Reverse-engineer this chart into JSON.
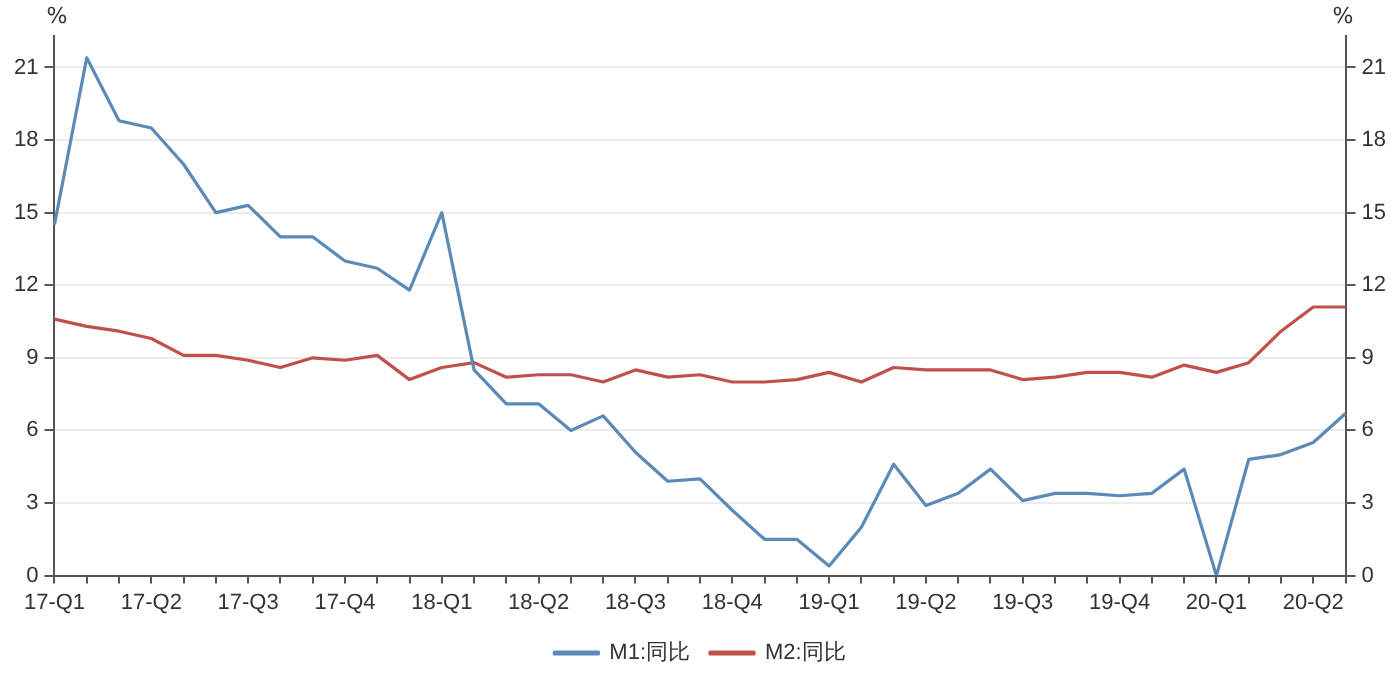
{
  "chart_data": {
    "type": "line",
    "categories": [
      "17-Q1",
      null,
      null,
      "17-Q2",
      null,
      null,
      "17-Q3",
      null,
      null,
      "17-Q4",
      null,
      null,
      "18-Q1",
      null,
      null,
      "18-Q2",
      null,
      null,
      "18-Q3",
      null,
      null,
      "18-Q4",
      null,
      null,
      "19-Q1",
      null,
      null,
      "19-Q2",
      null,
      null,
      "19-Q3",
      null,
      null,
      "19-Q4",
      null,
      null,
      "20-Q1",
      null,
      null,
      "20-Q2",
      null
    ],
    "series": [
      {
        "name": "M1:同比",
        "color": "#5b8ab8",
        "values": [
          14.5,
          21.4,
          18.8,
          18.5,
          17.0,
          15.0,
          15.3,
          14.0,
          14.0,
          13.0,
          12.7,
          11.8,
          15.0,
          8.5,
          7.1,
          7.1,
          6.0,
          6.6,
          5.1,
          3.9,
          4.0,
          2.7,
          1.5,
          1.5,
          0.4,
          2.0,
          4.6,
          2.9,
          3.4,
          4.4,
          3.1,
          3.4,
          3.4,
          3.3,
          3.4,
          4.4,
          0.0,
          4.8,
          5.0,
          5.5,
          6.7
        ]
      },
      {
        "name": "M2:同比",
        "color": "#c0504d",
        "values": [
          10.6,
          10.3,
          10.1,
          9.8,
          9.1,
          9.1,
          8.9,
          8.6,
          9.0,
          8.9,
          9.1,
          8.1,
          8.6,
          8.8,
          8.2,
          8.3,
          8.3,
          8.0,
          8.5,
          8.2,
          8.3,
          8.0,
          8.0,
          8.1,
          8.4,
          8.0,
          8.6,
          8.5,
          8.5,
          8.5,
          8.1,
          8.2,
          8.4,
          8.4,
          8.2,
          8.7,
          8.4,
          8.8,
          10.1,
          11.1,
          11.1
        ]
      }
    ],
    "ylabel": "%",
    "y2label": "%",
    "ylim": [
      0,
      22.3
    ],
    "yticks": [
      0,
      3,
      6,
      9,
      12,
      15,
      18,
      21
    ],
    "y2lim": [
      0,
      22.3
    ],
    "y2ticks": [
      0,
      3,
      6,
      9,
      12,
      15,
      18,
      21
    ],
    "grid": "y",
    "legend": "bottom",
    "marker": "none",
    "line_style": "solid"
  }
}
